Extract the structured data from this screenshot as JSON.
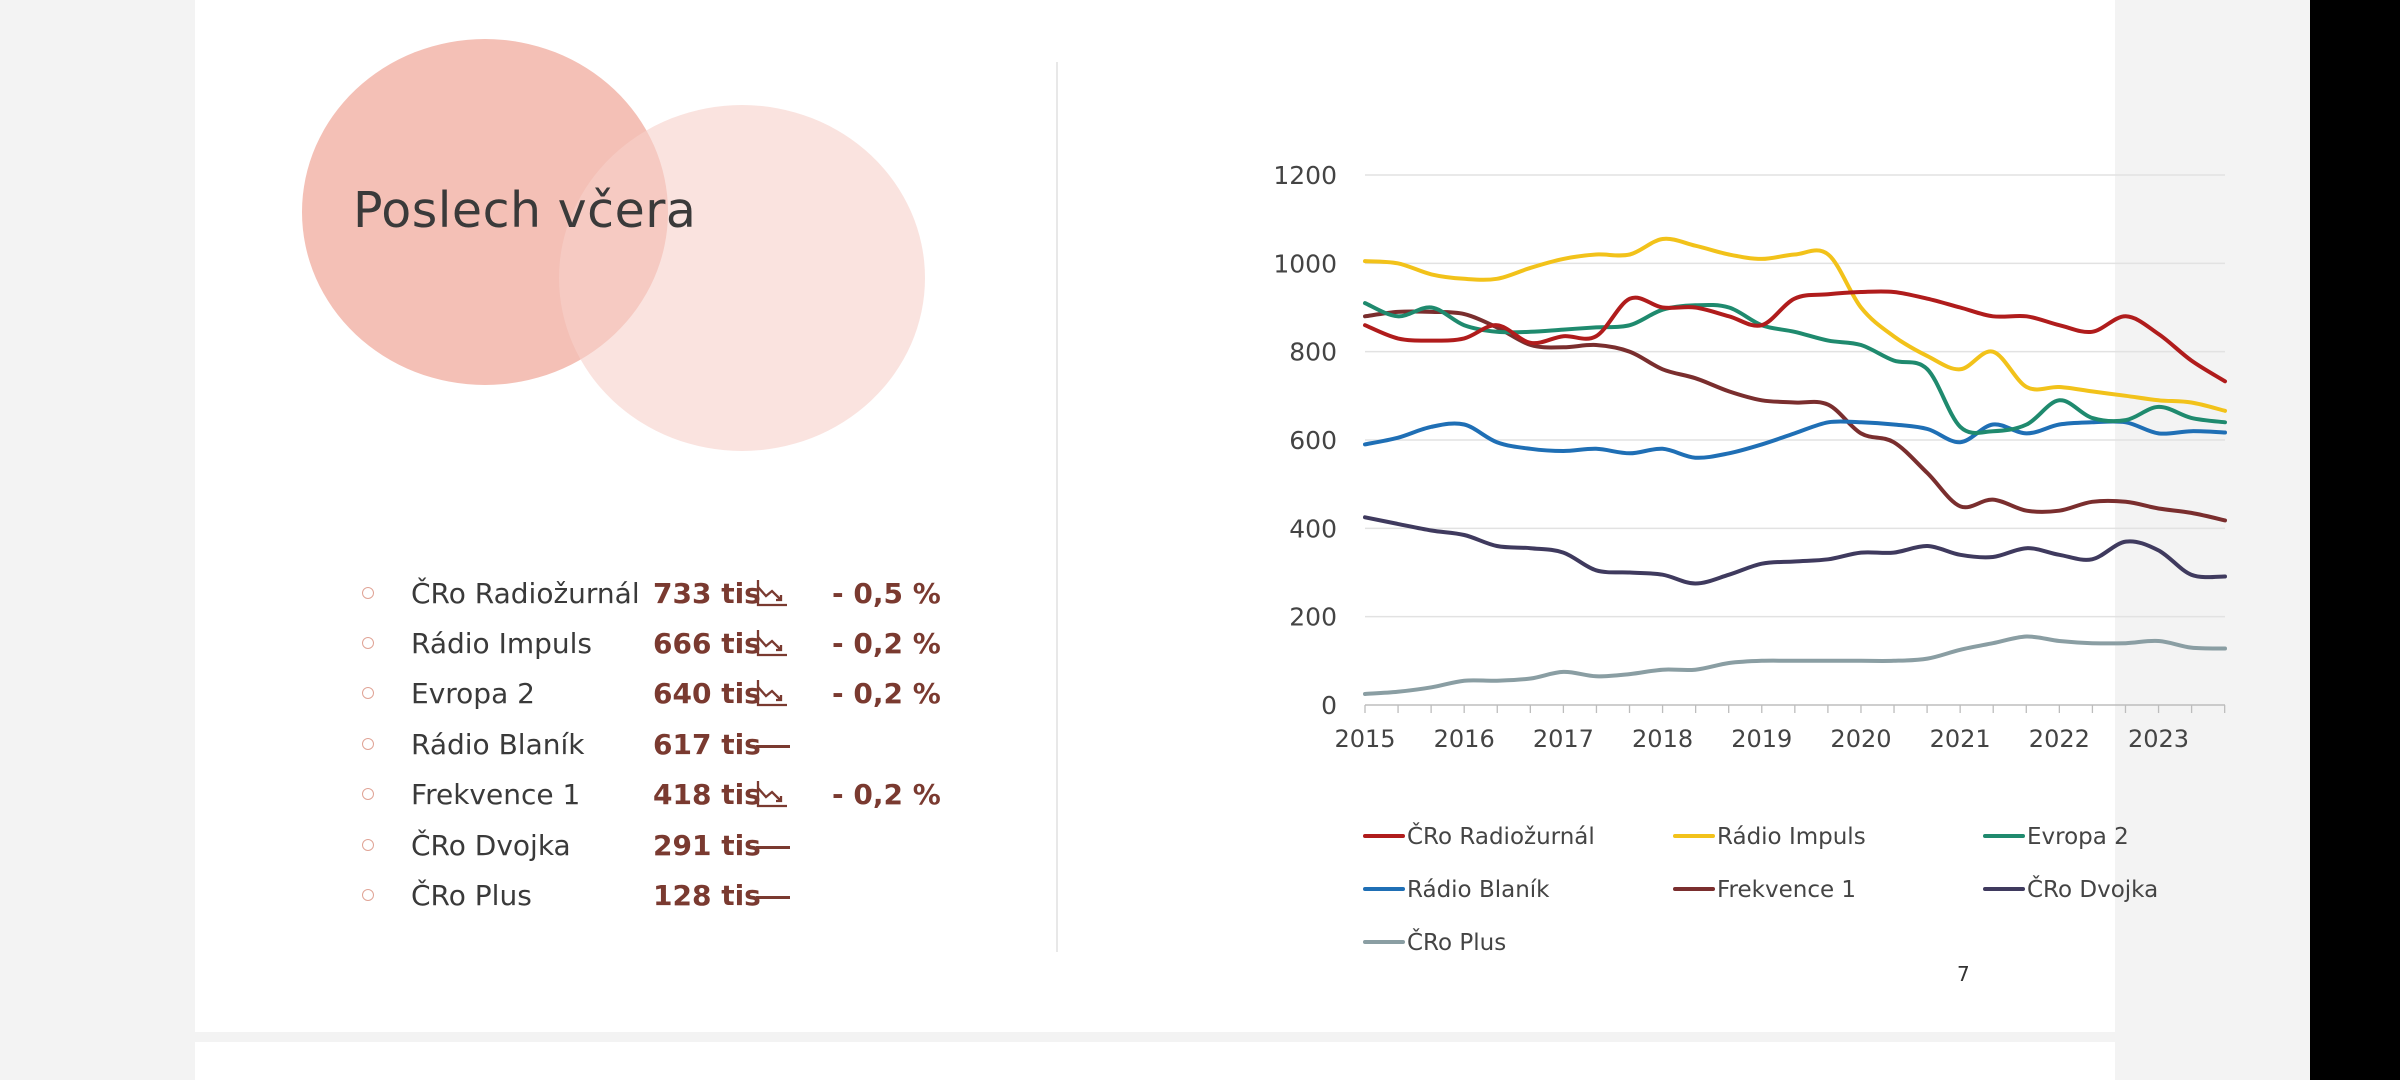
{
  "slide": {
    "title": "Poslech včera",
    "page_number": "7"
  },
  "stats": [
    {
      "name": "ČRo Radiožurnál",
      "value": "733 tis",
      "trend": "down",
      "change": "- 0,5 %"
    },
    {
      "name": "Rádio Impuls",
      "value": "666 tis",
      "trend": "down",
      "change": "- 0,2 %"
    },
    {
      "name": "Evropa 2",
      "value": "640 tis",
      "trend": "down",
      "change": "- 0,2 %"
    },
    {
      "name": "Rádio Blaník",
      "value": "617 tis",
      "trend": "flat",
      "change": ""
    },
    {
      "name": "Frekvence 1",
      "value": "418 tis",
      "trend": "down",
      "change": "- 0,2 %"
    },
    {
      "name": "ČRo Dvojka",
      "value": "291 tis",
      "trend": "flat",
      "change": ""
    },
    {
      "name": "ČRo Plus",
      "value": "128 tis",
      "trend": "flat",
      "change": ""
    }
  ],
  "chart_data": {
    "type": "line",
    "title": "",
    "xlabel": "",
    "ylabel": "",
    "ylim": [
      0,
      1200
    ],
    "yticks": [
      0,
      200,
      400,
      600,
      800,
      1000,
      1200
    ],
    "xlim": [
      2015,
      2023.67
    ],
    "xticks": [
      2015,
      2016,
      2017,
      2018,
      2019,
      2020,
      2021,
      2022,
      2023
    ],
    "grid": "horizontal",
    "legend": "bottom",
    "x": [
      2015.0,
      2015.33,
      2015.67,
      2016.0,
      2016.33,
      2016.67,
      2017.0,
      2017.33,
      2017.67,
      2018.0,
      2018.33,
      2018.67,
      2019.0,
      2019.33,
      2019.67,
      2020.0,
      2020.33,
      2020.67,
      2021.0,
      2021.33,
      2021.67,
      2022.0,
      2022.33,
      2022.67,
      2023.0,
      2023.33,
      2023.67
    ],
    "series": [
      {
        "name": "ČRo Radiožurnál",
        "color": "#b01c1c",
        "values": [
          860,
          830,
          825,
          830,
          860,
          820,
          835,
          835,
          920,
          900,
          900,
          880,
          860,
          920,
          930,
          935,
          935,
          920,
          900,
          880,
          880,
          860,
          845,
          880,
          840,
          780,
          733
        ]
      },
      {
        "name": "Rádio Impuls",
        "color": "#f2c21a",
        "values": [
          1005,
          1000,
          975,
          965,
          965,
          990,
          1010,
          1020,
          1020,
          1055,
          1040,
          1020,
          1010,
          1020,
          1020,
          900,
          835,
          790,
          760,
          800,
          720,
          720,
          710,
          700,
          690,
          685,
          666
        ]
      },
      {
        "name": "Evropa 2",
        "color": "#1f8a6e",
        "values": [
          910,
          880,
          900,
          860,
          845,
          845,
          850,
          855,
          860,
          895,
          905,
          900,
          860,
          845,
          825,
          815,
          780,
          760,
          630,
          620,
          635,
          690,
          650,
          645,
          675,
          650,
          640
        ]
      },
      {
        "name": "Rádio Blaník",
        "color": "#1f6fb5",
        "values": [
          590,
          605,
          630,
          635,
          595,
          580,
          575,
          580,
          570,
          580,
          560,
          570,
          590,
          615,
          640,
          640,
          635,
          625,
          595,
          635,
          615,
          635,
          640,
          640,
          615,
          620,
          617
        ]
      },
      {
        "name": "Frekvence 1",
        "color": "#7a2e2e",
        "values": [
          880,
          890,
          890,
          885,
          855,
          815,
          810,
          815,
          800,
          760,
          740,
          710,
          690,
          685,
          680,
          615,
          595,
          525,
          450,
          465,
          440,
          440,
          460,
          460,
          445,
          435,
          418
        ]
      },
      {
        "name": "ČRo Dvojka",
        "color": "#3f3a5e",
        "values": [
          425,
          410,
          395,
          385,
          360,
          355,
          345,
          305,
          300,
          295,
          275,
          295,
          320,
          325,
          330,
          345,
          345,
          360,
          340,
          335,
          355,
          340,
          330,
          370,
          350,
          295,
          291
        ]
      },
      {
        "name": "ČRo Plus",
        "color": "#8a9ea3",
        "values": [
          25,
          30,
          40,
          55,
          55,
          60,
          75,
          65,
          70,
          80,
          80,
          95,
          100,
          100,
          100,
          100,
          100,
          105,
          125,
          140,
          155,
          145,
          140,
          140,
          145,
          130,
          128
        ]
      }
    ]
  }
}
